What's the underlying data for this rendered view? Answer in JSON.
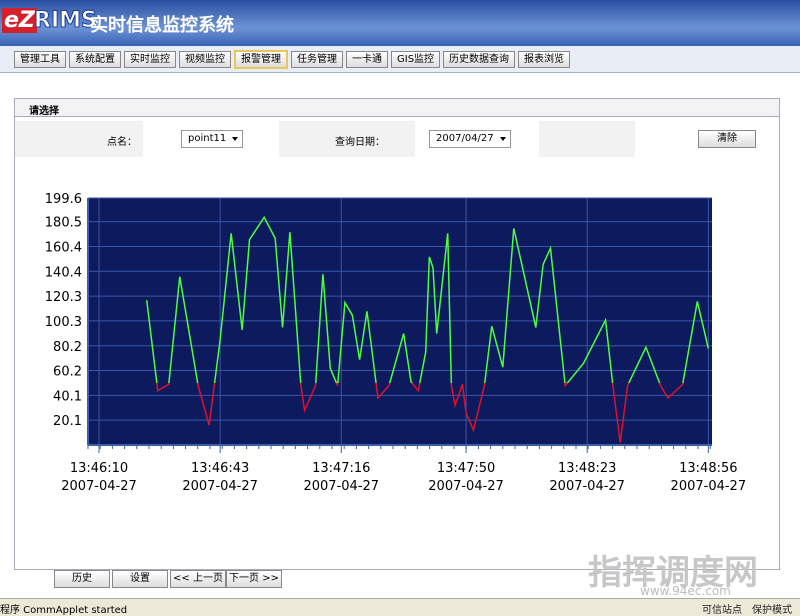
{
  "header": {
    "logo_e": "eZ",
    "logo_rims": "RIMS",
    "title": "实时信息监控系统"
  },
  "menu": [
    "管理工具",
    "系统配置",
    "实时监控",
    "视频监控",
    "报警管理",
    "任务管理",
    "一卡通",
    "GIS监控",
    "历史数据查询",
    "报表浏览"
  ],
  "menu_active": 4,
  "panel_title": "请选择",
  "filter": {
    "point_label": "点名：",
    "point_value": "point11",
    "date_label": "查询日期：",
    "date_value": "2007/04/27",
    "clear_button": "清除"
  },
  "chart": {
    "type": "line",
    "ylim": [
      0,
      199.6
    ],
    "yticks": [
      20.1,
      40.1,
      60.2,
      80.2,
      100.3,
      120.3,
      140.4,
      160.4,
      180.5,
      199.6
    ],
    "xlim": [
      49567,
      49737
    ],
    "xticks": [
      {
        "value": 49570,
        "label": "13:46:10"
      },
      {
        "value": 49603,
        "label": "13:46:43"
      },
      {
        "value": 49636,
        "label": "13:47:16"
      },
      {
        "value": 49670,
        "label": "13:47:50"
      },
      {
        "value": 49703,
        "label": "13:48:23"
      },
      {
        "value": 49736,
        "label": "13:48:56"
      }
    ],
    "x_date_labels": [
      "2007-04-27",
      "2007-04-27",
      "2007-04-27",
      "2007-04-27",
      "2007-04-27",
      "2007-04-27"
    ],
    "grid": true,
    "background": "#0d1b5e",
    "series": [
      {
        "color": "#4cff3c",
        "alarm_color": "#e0102a",
        "threshold": 50,
        "x": [
          49583,
          49586,
          49589,
          49592,
          49597,
          49600,
          49603,
          49606,
          49609,
          49611,
          49615,
          49618,
          49620,
          49622,
          49625,
          49626,
          49629,
          49631,
          49633,
          49635,
          49637,
          49639,
          49641,
          49643,
          49646,
          49649,
          49653,
          49655,
          49657,
          49659,
          49660,
          49661,
          49662,
          49665,
          49666,
          49667,
          49669,
          49670,
          49672,
          49675,
          49677,
          49680,
          49683,
          49689,
          49691,
          49693,
          49697,
          49702,
          49708,
          49710,
          49712,
          49714,
          49719,
          49723,
          49725,
          49729,
          49733,
          49736
        ],
        "values": [
          117,
          44,
          49,
          136,
          48,
          16,
          85,
          171,
          93,
          166,
          184,
          167,
          95,
          172,
          48,
          28,
          48,
          138,
          62,
          48,
          115,
          105,
          69,
          108,
          38,
          48,
          90,
          51,
          44,
          75,
          152,
          143,
          90,
          171,
          48,
          32,
          49,
          26,
          12,
          48,
          96,
          63,
          175,
          95,
          146,
          159,
          48,
          66,
          101,
          48,
          2,
          48,
          79,
          48,
          38,
          49,
          116,
          78
        ]
      }
    ]
  },
  "buttons": [
    "历史",
    "设置",
    "<< 上一页",
    "下一页 >>"
  ],
  "status": {
    "left": "程序 CommApplet started",
    "trusted": "可信站点",
    "mode": "保护模式"
  },
  "watermark": {
    "title": "指挥调度网",
    "url": "www.94ec.com"
  }
}
